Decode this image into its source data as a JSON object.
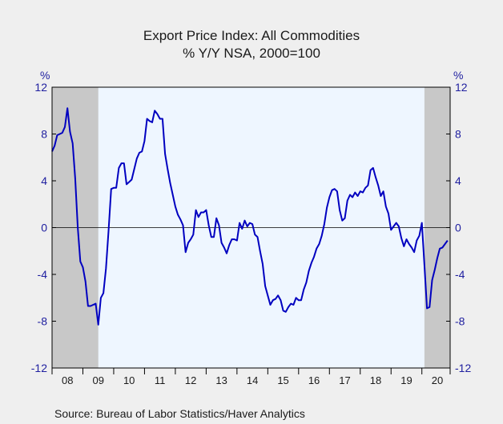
{
  "chart_data": {
    "type": "line",
    "title": "Export Price Index: All Commodities",
    "subtitle": "% Y/Y   NSA, 2000=100",
    "ylabel_left": "%",
    "ylabel_right": "%",
    "ylim": [
      -12,
      12
    ],
    "yticks": [
      12,
      8,
      4,
      0,
      -4,
      -8,
      -12
    ],
    "ytick_labels": [
      "12",
      "8",
      "4",
      "0",
      "-4",
      "-8",
      "-12"
    ],
    "xlim": [
      2008.0,
      2020.917
    ],
    "year_labels": [
      "08",
      "09",
      "10",
      "11",
      "12",
      "13",
      "14",
      "15",
      "16",
      "17",
      "18",
      "19",
      "20"
    ],
    "grid": false,
    "legend": "none",
    "source": "Source:  Bureau of Labor Statistics/Haver Analytics",
    "recessions": [
      {
        "start": 2008.0,
        "end": 2009.5
      },
      {
        "start": 2020.083,
        "end": 2020.917
      }
    ],
    "colors": {
      "line": "#0000c0",
      "recession_shade": "#c8c8c8",
      "plot_bg": "#eef6ff",
      "page_bg": "#efefef",
      "axis_labels": "#2020a0"
    },
    "series": [
      {
        "x": [
          2008.0,
          2008.083,
          2008.167,
          2008.25,
          2008.333,
          2008.417,
          2008.5,
          2008.583,
          2008.667,
          2008.75,
          2008.833,
          2008.917,
          2009.0,
          2009.083,
          2009.167,
          2009.25,
          2009.333,
          2009.417,
          2009.5,
          2009.583,
          2009.667,
          2009.75,
          2009.833,
          2009.917,
          2010.0,
          2010.083,
          2010.167,
          2010.25,
          2010.333,
          2010.417,
          2010.5,
          2010.583,
          2010.667,
          2010.75,
          2010.833,
          2010.917,
          2011.0,
          2011.083,
          2011.167,
          2011.25,
          2011.333,
          2011.417,
          2011.5,
          2011.583,
          2011.667,
          2011.75,
          2011.833,
          2011.917,
          2012.0,
          2012.083,
          2012.167,
          2012.25,
          2012.333,
          2012.417,
          2012.5,
          2012.583,
          2012.667,
          2012.75,
          2012.833,
          2012.917,
          2013.0,
          2013.083,
          2013.167,
          2013.25,
          2013.333,
          2013.417,
          2013.5,
          2013.583,
          2013.667,
          2013.75,
          2013.833,
          2013.917,
          2014.0,
          2014.083,
          2014.167,
          2014.25,
          2014.333,
          2014.417,
          2014.5,
          2014.583,
          2014.667,
          2014.75,
          2014.833,
          2014.917,
          2015.0,
          2015.083,
          2015.167,
          2015.25,
          2015.333,
          2015.417,
          2015.5,
          2015.583,
          2015.667,
          2015.75,
          2015.833,
          2015.917,
          2016.0,
          2016.083,
          2016.167,
          2016.25,
          2016.333,
          2016.417,
          2016.5,
          2016.583,
          2016.667,
          2016.75,
          2016.833,
          2016.917,
          2017.0,
          2017.083,
          2017.167,
          2017.25,
          2017.333,
          2017.417,
          2017.5,
          2017.583,
          2017.667,
          2017.75,
          2017.833,
          2017.917,
          2018.0,
          2018.083,
          2018.167,
          2018.25,
          2018.333,
          2018.417,
          2018.5,
          2018.583,
          2018.667,
          2018.75,
          2018.833,
          2018.917,
          2019.0,
          2019.083,
          2019.167,
          2019.25,
          2019.333,
          2019.417,
          2019.5,
          2019.583,
          2019.667,
          2019.75,
          2019.833,
          2019.917,
          2020.0,
          2020.083,
          2020.167,
          2020.25,
          2020.333,
          2020.417,
          2020.5,
          2020.583,
          2020.667,
          2020.75,
          2020.833
        ],
        "y": [
          6.5,
          7.0,
          7.9,
          8.0,
          8.1,
          8.6,
          10.2,
          8.2,
          7.2,
          4.2,
          0.0,
          -2.9,
          -3.4,
          -4.6,
          -6.7,
          -6.7,
          -6.6,
          -6.5,
          -8.3,
          -6.0,
          -5.6,
          -3.5,
          -0.3,
          3.3,
          3.4,
          3.4,
          5.1,
          5.5,
          5.5,
          3.7,
          3.9,
          4.1,
          5.0,
          5.9,
          6.4,
          6.5,
          7.4,
          9.3,
          9.1,
          9.0,
          10.0,
          9.7,
          9.3,
          9.3,
          6.3,
          5.0,
          3.8,
          2.8,
          1.8,
          1.1,
          0.7,
          0.2,
          -2.1,
          -1.3,
          -1.0,
          -0.6,
          1.5,
          0.9,
          1.3,
          1.3,
          1.5,
          0.2,
          -0.8,
          -0.8,
          0.8,
          0.2,
          -1.3,
          -1.7,
          -2.2,
          -1.5,
          -1.0,
          -1.0,
          -1.1,
          0.4,
          -0.1,
          0.6,
          0.1,
          0.4,
          0.3,
          -0.6,
          -0.8,
          -2.0,
          -3.1,
          -5.0,
          -5.8,
          -6.6,
          -6.2,
          -6.1,
          -5.8,
          -6.2,
          -7.1,
          -7.2,
          -6.8,
          -6.5,
          -6.6,
          -6.0,
          -6.2,
          -6.2,
          -5.3,
          -4.7,
          -3.7,
          -3.0,
          -2.5,
          -1.8,
          -1.4,
          -0.7,
          0.3,
          1.7,
          2.6,
          3.2,
          3.3,
          3.1,
          1.5,
          0.6,
          0.8,
          2.3,
          2.8,
          2.6,
          3.0,
          2.7,
          3.1,
          3.0,
          3.4,
          3.6,
          4.9,
          5.1,
          4.3,
          3.6,
          2.7,
          3.1,
          1.8,
          1.2,
          -0.2,
          0.1,
          0.4,
          0.1,
          -0.9,
          -1.6,
          -1.0,
          -1.4,
          -1.7,
          -2.1,
          -1.1,
          -0.7,
          0.4,
          -3.2,
          -6.9,
          -6.8,
          -4.5,
          -3.6,
          -2.6,
          -1.8,
          -1.7,
          -1.4,
          -1.1
        ]
      }
    ]
  }
}
